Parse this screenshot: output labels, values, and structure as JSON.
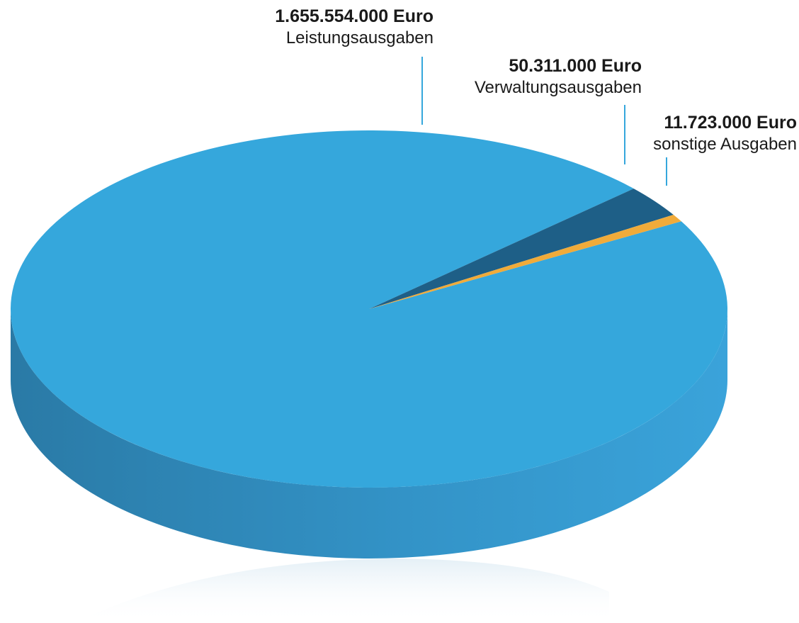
{
  "chart_data": {
    "type": "pie",
    "title": "",
    "slices": [
      {
        "label": "Leistungsausgaben",
        "value": 1655554000,
        "value_text": "1.655.554.000 Euro",
        "color": "#35a7dc"
      },
      {
        "label": "Verwaltungsausgaben",
        "value": 50311000,
        "value_text": "50.311.000 Euro",
        "color": "#1e5f87"
      },
      {
        "label": "sonstige Ausgaben",
        "value": 11723000,
        "value_text": "11.723.000 Euro",
        "color": "#f0ab3a"
      }
    ],
    "style": "3d-perspective",
    "side_color": "#2e86b9",
    "leader_line_color": "#35a7dc"
  }
}
